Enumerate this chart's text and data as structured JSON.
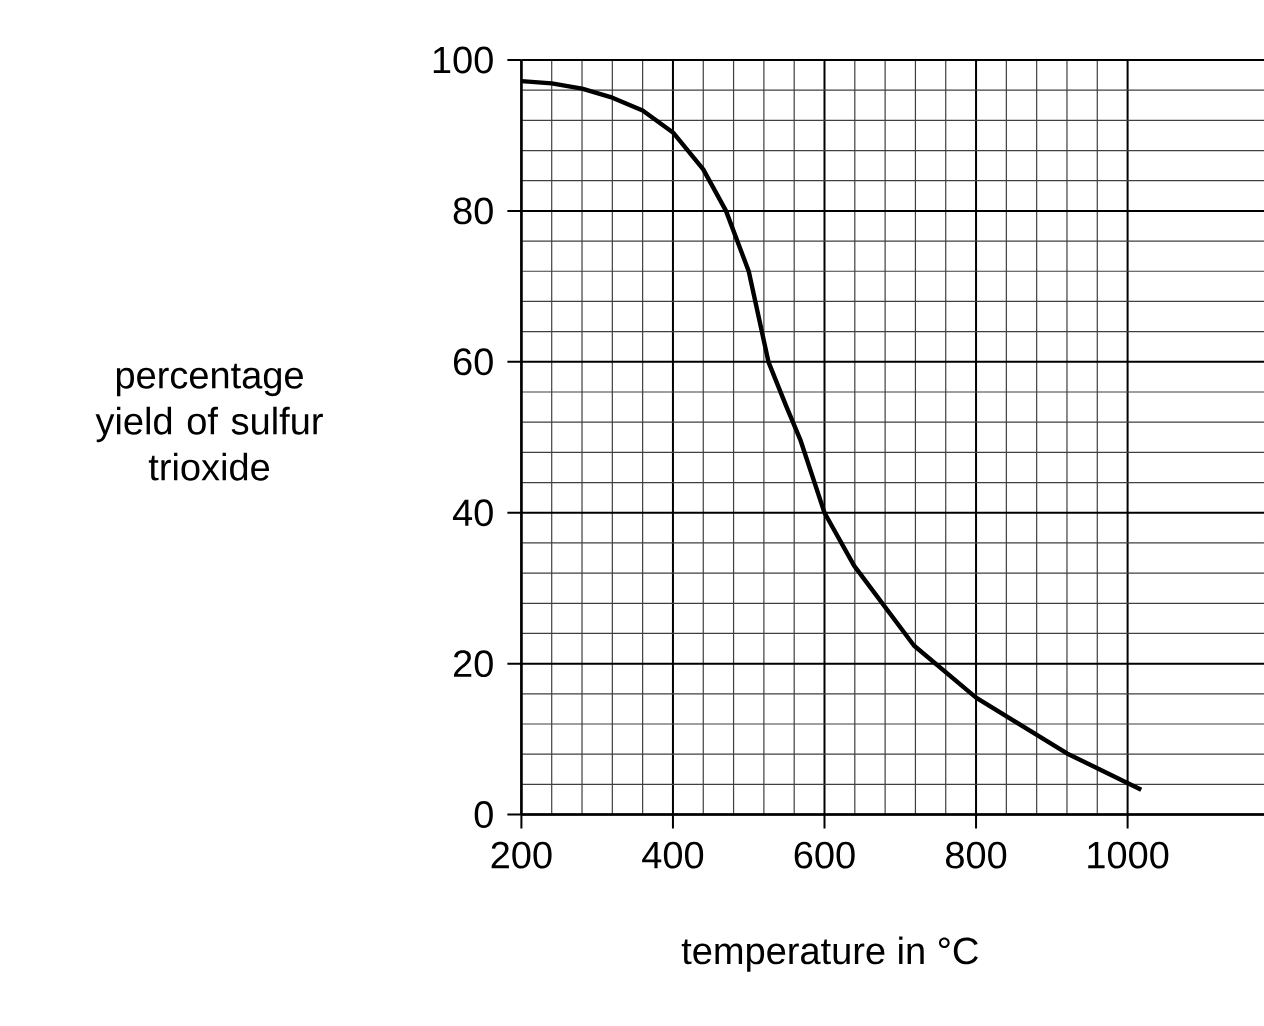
{
  "chart_data": {
    "type": "line",
    "xlabel": "temperature in °C",
    "ylabel": "percentage yield of sulfur trioxide",
    "xlim": [
      200,
      1180
    ],
    "ylim": [
      0,
      100
    ],
    "xticks": [
      200,
      400,
      600,
      800,
      1000
    ],
    "yticks": [
      0,
      20,
      40,
      60,
      80,
      100
    ],
    "grid": true,
    "marker": "none",
    "line_style": "solid",
    "series": [
      {
        "color": "#000000",
        "x": [
          200,
          240,
          280,
          320,
          360,
          400,
          440,
          470,
          500,
          526,
          550,
          568,
          600,
          639,
          718,
          800,
          920,
          1018
        ],
        "values": [
          97.2,
          96.9,
          96.2,
          95,
          93.3,
          90.4,
          85.5,
          80,
          72,
          60,
          54,
          49.7,
          40,
          33,
          22.4,
          15.5,
          8.1,
          3.3
        ]
      }
    ]
  }
}
